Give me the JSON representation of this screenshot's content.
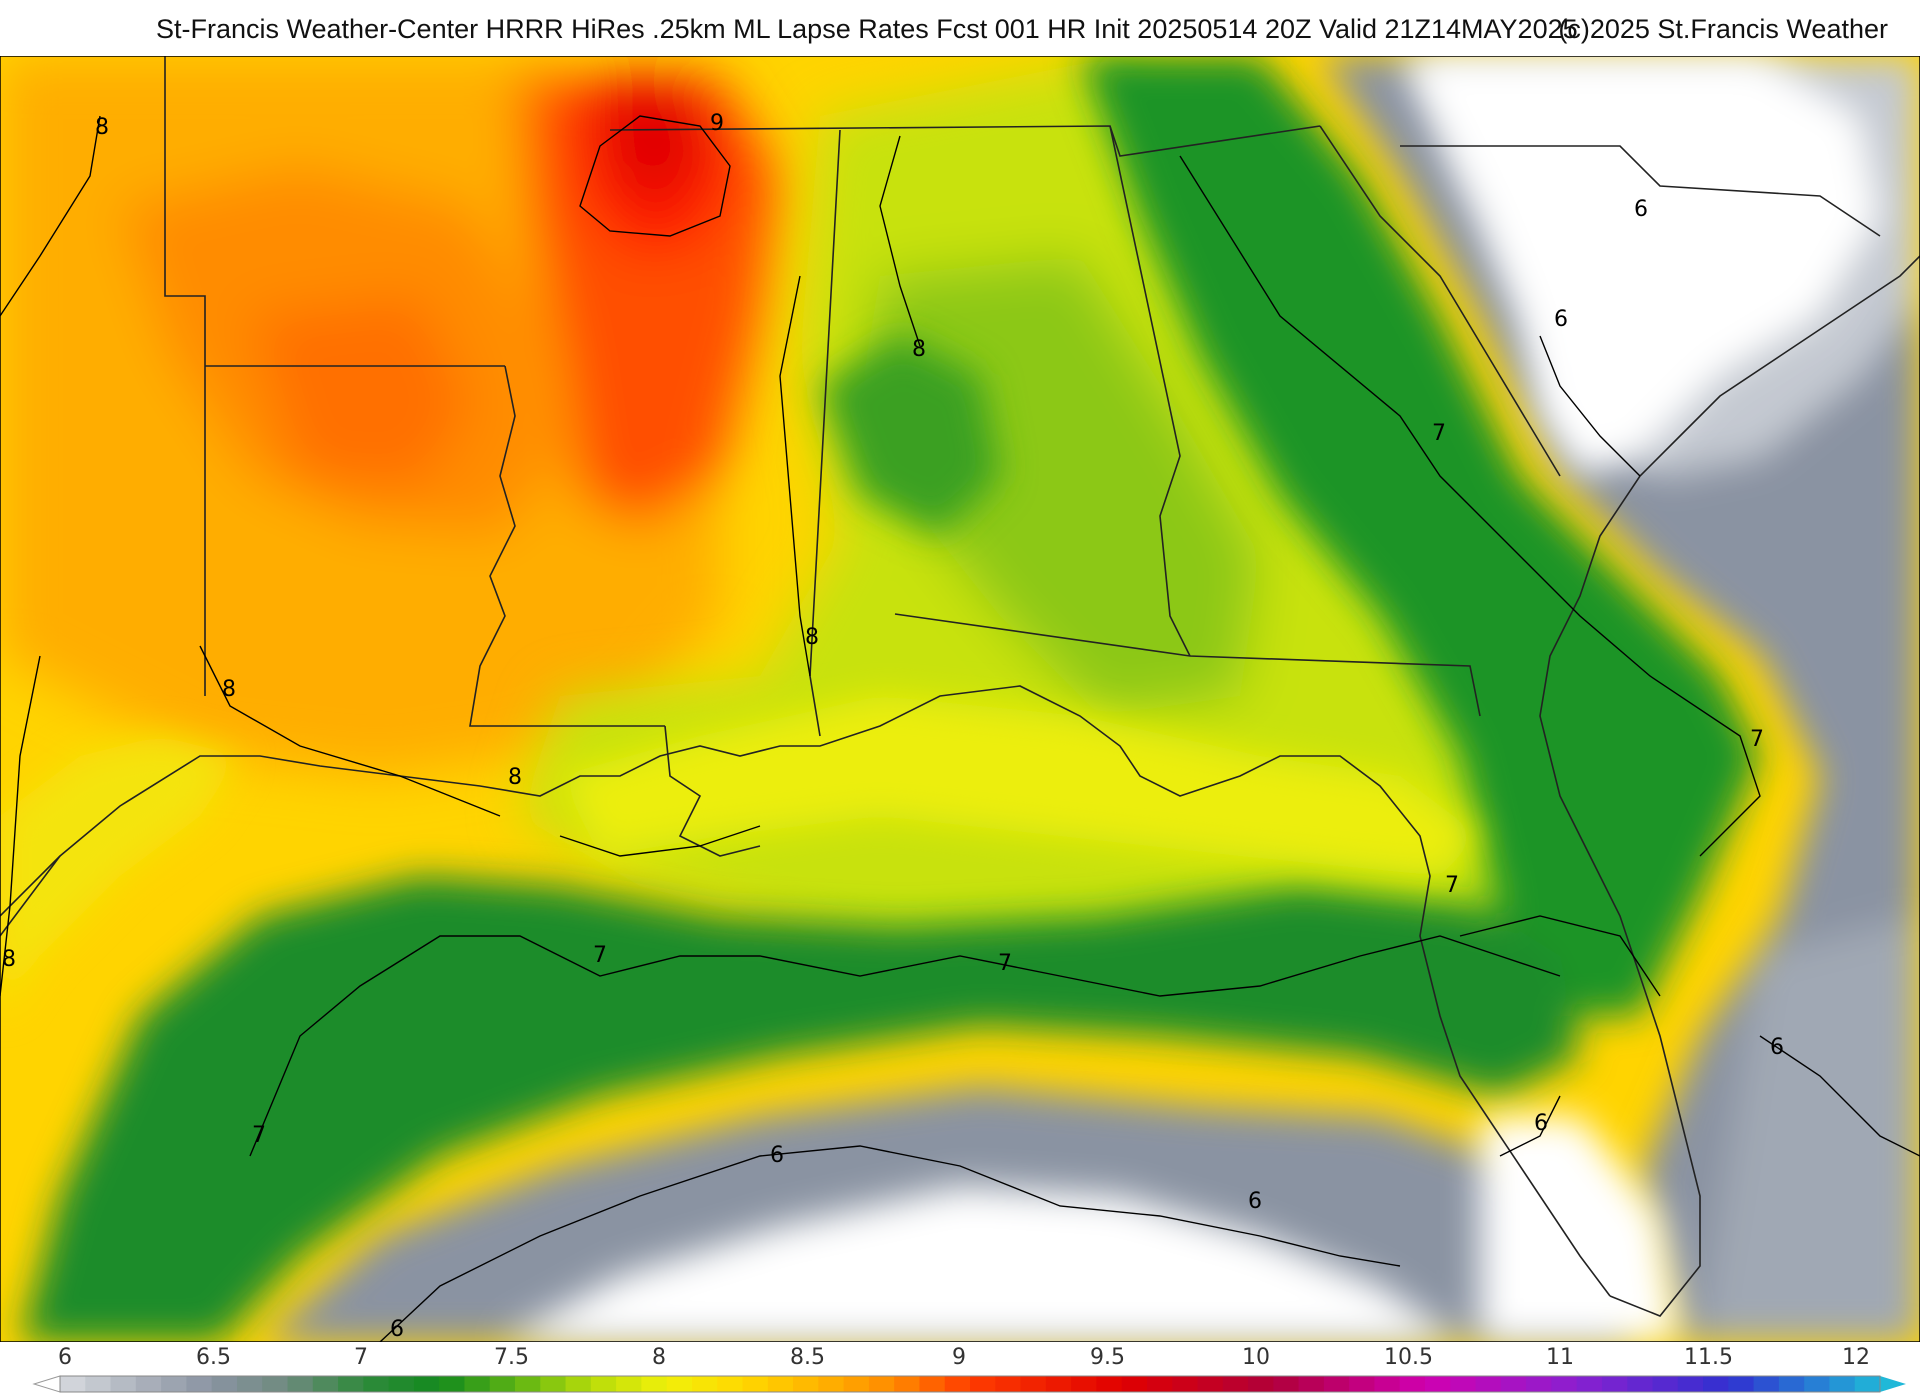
{
  "header": {
    "title": "St-Francis Weather-Center HRRR HiRes .25km ML Lapse Rates  Fcst 001 HR Init 20250514 20Z  Valid 21Z14MAY2025",
    "copyright": "(c)2025 St.Francis Weather"
  },
  "contour_labels": [
    "8",
    "9",
    "8",
    "8",
    "8",
    "8",
    "8",
    "7",
    "7",
    "7",
    "7",
    "7",
    "7",
    "6",
    "6",
    "6",
    "6",
    "6",
    "6",
    "6"
  ],
  "colorbar": {
    "ticks": [
      "6",
      "6.5",
      "7",
      "7.5",
      "8",
      "8.5",
      "9",
      "9.5",
      "10",
      "10.5",
      "11",
      "11.5",
      "12"
    ],
    "colors": {
      "lt6": "#ffffff",
      "6": "#d8dbe0",
      "6.25": "#aeb4be",
      "6.5": "#8a93a2",
      "6.75": "#6e8a7e",
      "7": "#2f8a3c",
      "7.25": "#138a1e",
      "7.5": "#5cb314",
      "7.75": "#b6dc0a",
      "8": "#f1f00a",
      "8.25": "#ffd800",
      "8.5": "#ffb400",
      "8.75": "#ff8a00",
      "9": "#ff3c00",
      "9.5": "#e00000",
      "10": "#b0003a",
      "10.5": "#d000b0",
      "11": "#8a20d0",
      "11.5": "#3030d0",
      "12": "#20b8d8"
    }
  }
}
